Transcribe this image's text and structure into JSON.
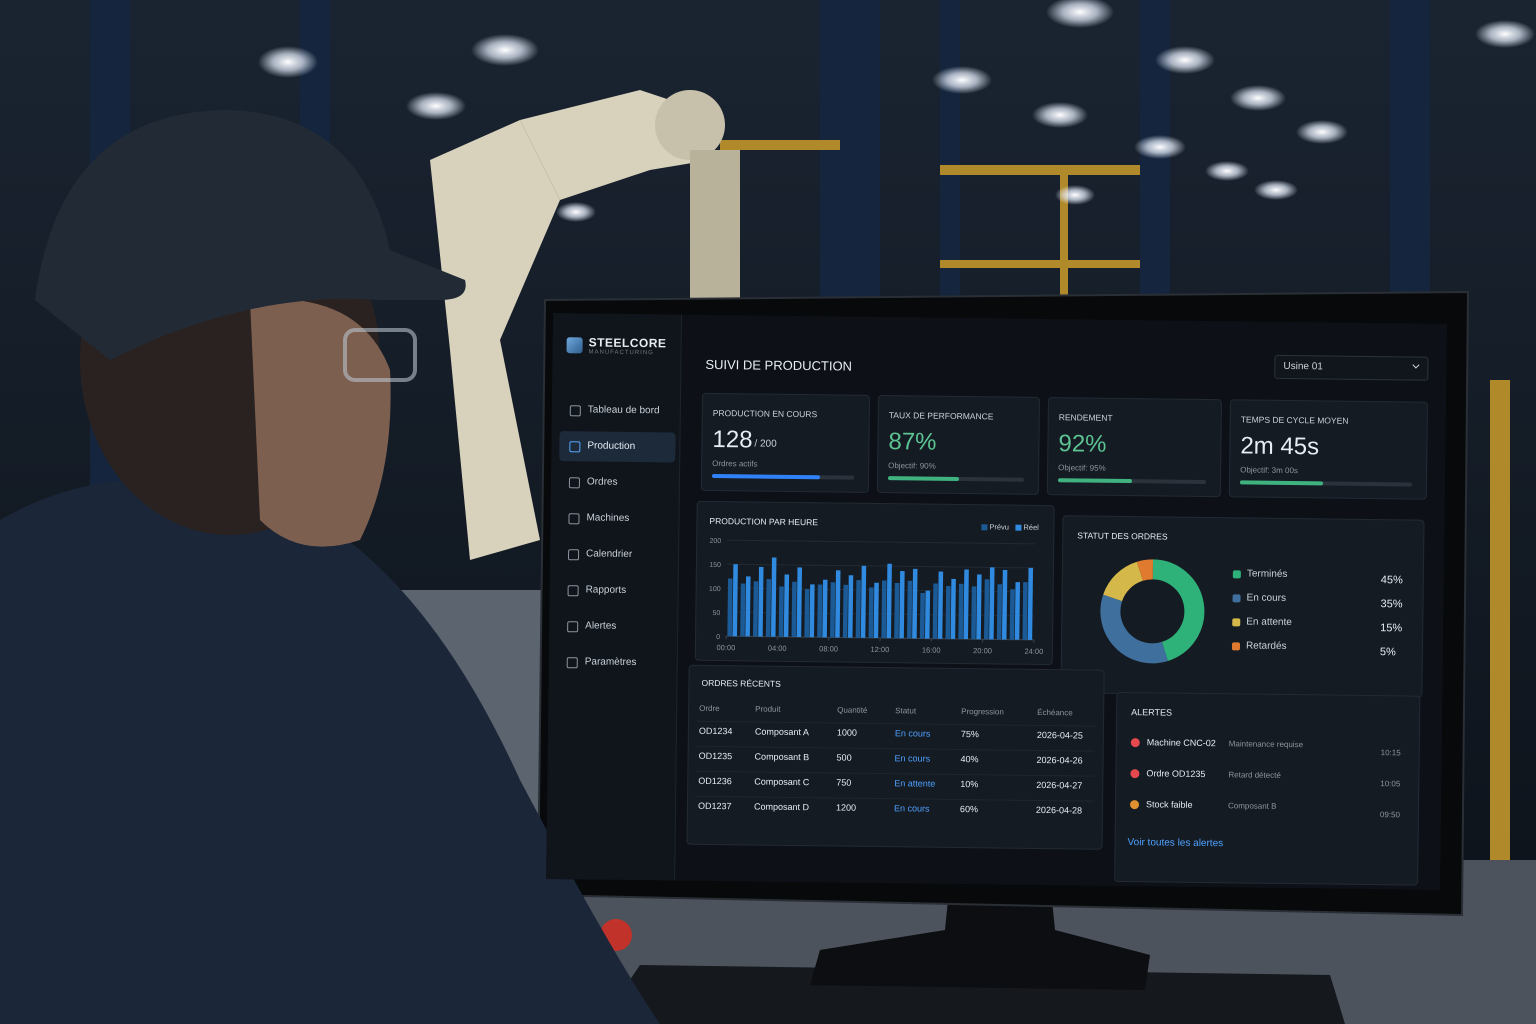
{
  "brand": {
    "name": "STEELCORE",
    "tagline": "MANUFACTURING"
  },
  "sidebar": {
    "items": [
      {
        "label": "Tableau de bord"
      },
      {
        "label": "Production",
        "active": true
      },
      {
        "label": "Ordres"
      },
      {
        "label": "Machines"
      },
      {
        "label": "Calendrier"
      },
      {
        "label": "Rapports"
      },
      {
        "label": "Alertes"
      },
      {
        "label": "Paramètres"
      }
    ]
  },
  "header": {
    "title": "SUIVI DE PRODUCTION",
    "site": "Usine 01"
  },
  "kpis": [
    {
      "label": "PRODUCTION EN COURS",
      "value": "128",
      "unit": "/ 200",
      "note": "Ordres actifs",
      "progress": 76,
      "color": "#2f81f7",
      "value_color": "#e6edf3"
    },
    {
      "label": "TAUX DE PERFORMANCE",
      "value": "87%",
      "note": "Objectif: 90%",
      "progress": 52,
      "color": "#3fb27f",
      "value_color": "#5cc492"
    },
    {
      "label": "RENDEMENT",
      "value": "92%",
      "note": "Objectif: 95%",
      "progress": 50,
      "color": "#3fb27f",
      "value_color": "#5cc492"
    },
    {
      "label": "TEMPS DE CYCLE MOYEN",
      "value": "2m 45s",
      "note": "Objectif: 3m 00s",
      "progress": 48,
      "color": "#3fb27f",
      "value_color": "#e6edf3"
    }
  ],
  "production_chart": {
    "type": "bar",
    "title": "PRODUCTION PAR HEURE",
    "x": [
      0,
      1,
      2,
      3,
      4,
      5,
      6,
      7,
      8,
      9,
      10,
      11,
      12,
      13,
      14,
      15,
      16,
      17,
      18,
      19,
      20,
      21,
      22,
      23
    ],
    "xlim": [
      0,
      24
    ],
    "xticks": [
      {
        "value": 0,
        "label": "00:00"
      },
      {
        "value": 4,
        "label": "04:00"
      },
      {
        "value": 8,
        "label": "08:00"
      },
      {
        "value": 12,
        "label": "12:00"
      },
      {
        "value": 16,
        "label": "16:00"
      },
      {
        "value": 20,
        "label": "20:00"
      },
      {
        "value": 24,
        "label": "24:00"
      }
    ],
    "ylim": [
      0,
      200
    ],
    "yticks": [
      0,
      50,
      100,
      150,
      200
    ],
    "series": [
      {
        "name": "Prévu",
        "color": "#1c5a96",
        "values": [
          120,
          110,
          115,
          120,
          105,
          115,
          100,
          110,
          115,
          110,
          120,
          105,
          120,
          115,
          120,
          95,
          115,
          110,
          115,
          110,
          125,
          115,
          105,
          120
        ]
      },
      {
        "name": "Réel",
        "color": "#2f8ae0",
        "values": [
          150,
          125,
          145,
          165,
          130,
          145,
          110,
          120,
          140,
          130,
          150,
          115,
          155,
          140,
          145,
          100,
          140,
          125,
          145,
          135,
          150,
          145,
          120,
          150
        ]
      }
    ]
  },
  "order_status": {
    "type": "pie",
    "title": "STATUT DES ORDRES",
    "categories": [
      "Terminés",
      "En cours",
      "En attente",
      "Retardés"
    ],
    "values": [
      45,
      35,
      15,
      5
    ],
    "value_labels": [
      "45%",
      "35%",
      "15%",
      "5%"
    ],
    "colors": [
      "#2fb27a",
      "#3f6f9c",
      "#d4b84a",
      "#e07a2f"
    ]
  },
  "recent_orders": {
    "title": "ORDRES RÉCENTS",
    "columns": [
      "Ordre",
      "Produit",
      "Quantité",
      "Statut",
      "Progression",
      "Échéance"
    ],
    "rows": [
      [
        "OD1234",
        "Composant A",
        "1000",
        "En cours",
        "75%",
        "2026-04-25"
      ],
      [
        "OD1235",
        "Composant B",
        "500",
        "En cours",
        "40%",
        "2026-04-26"
      ],
      [
        "OD1236",
        "Composant C",
        "750",
        "En attente",
        "10%",
        "2026-04-27"
      ],
      [
        "OD1237",
        "Composant D",
        "1200",
        "En cours",
        "60%",
        "2026-04-28"
      ]
    ]
  },
  "alerts": {
    "title": "ALERTES",
    "items": [
      {
        "title": "Machine CNC-02",
        "detail": "Maintenance requise",
        "time": "10:15",
        "color": "#e5484d"
      },
      {
        "title": "Ordre OD1235",
        "detail": "Retard détecté",
        "time": "10:05",
        "color": "#e5484d"
      },
      {
        "title": "Stock faible",
        "detail": "Composant B",
        "time": "09:50",
        "color": "#e0902f"
      }
    ],
    "link": "Voir toutes les alertes"
  }
}
